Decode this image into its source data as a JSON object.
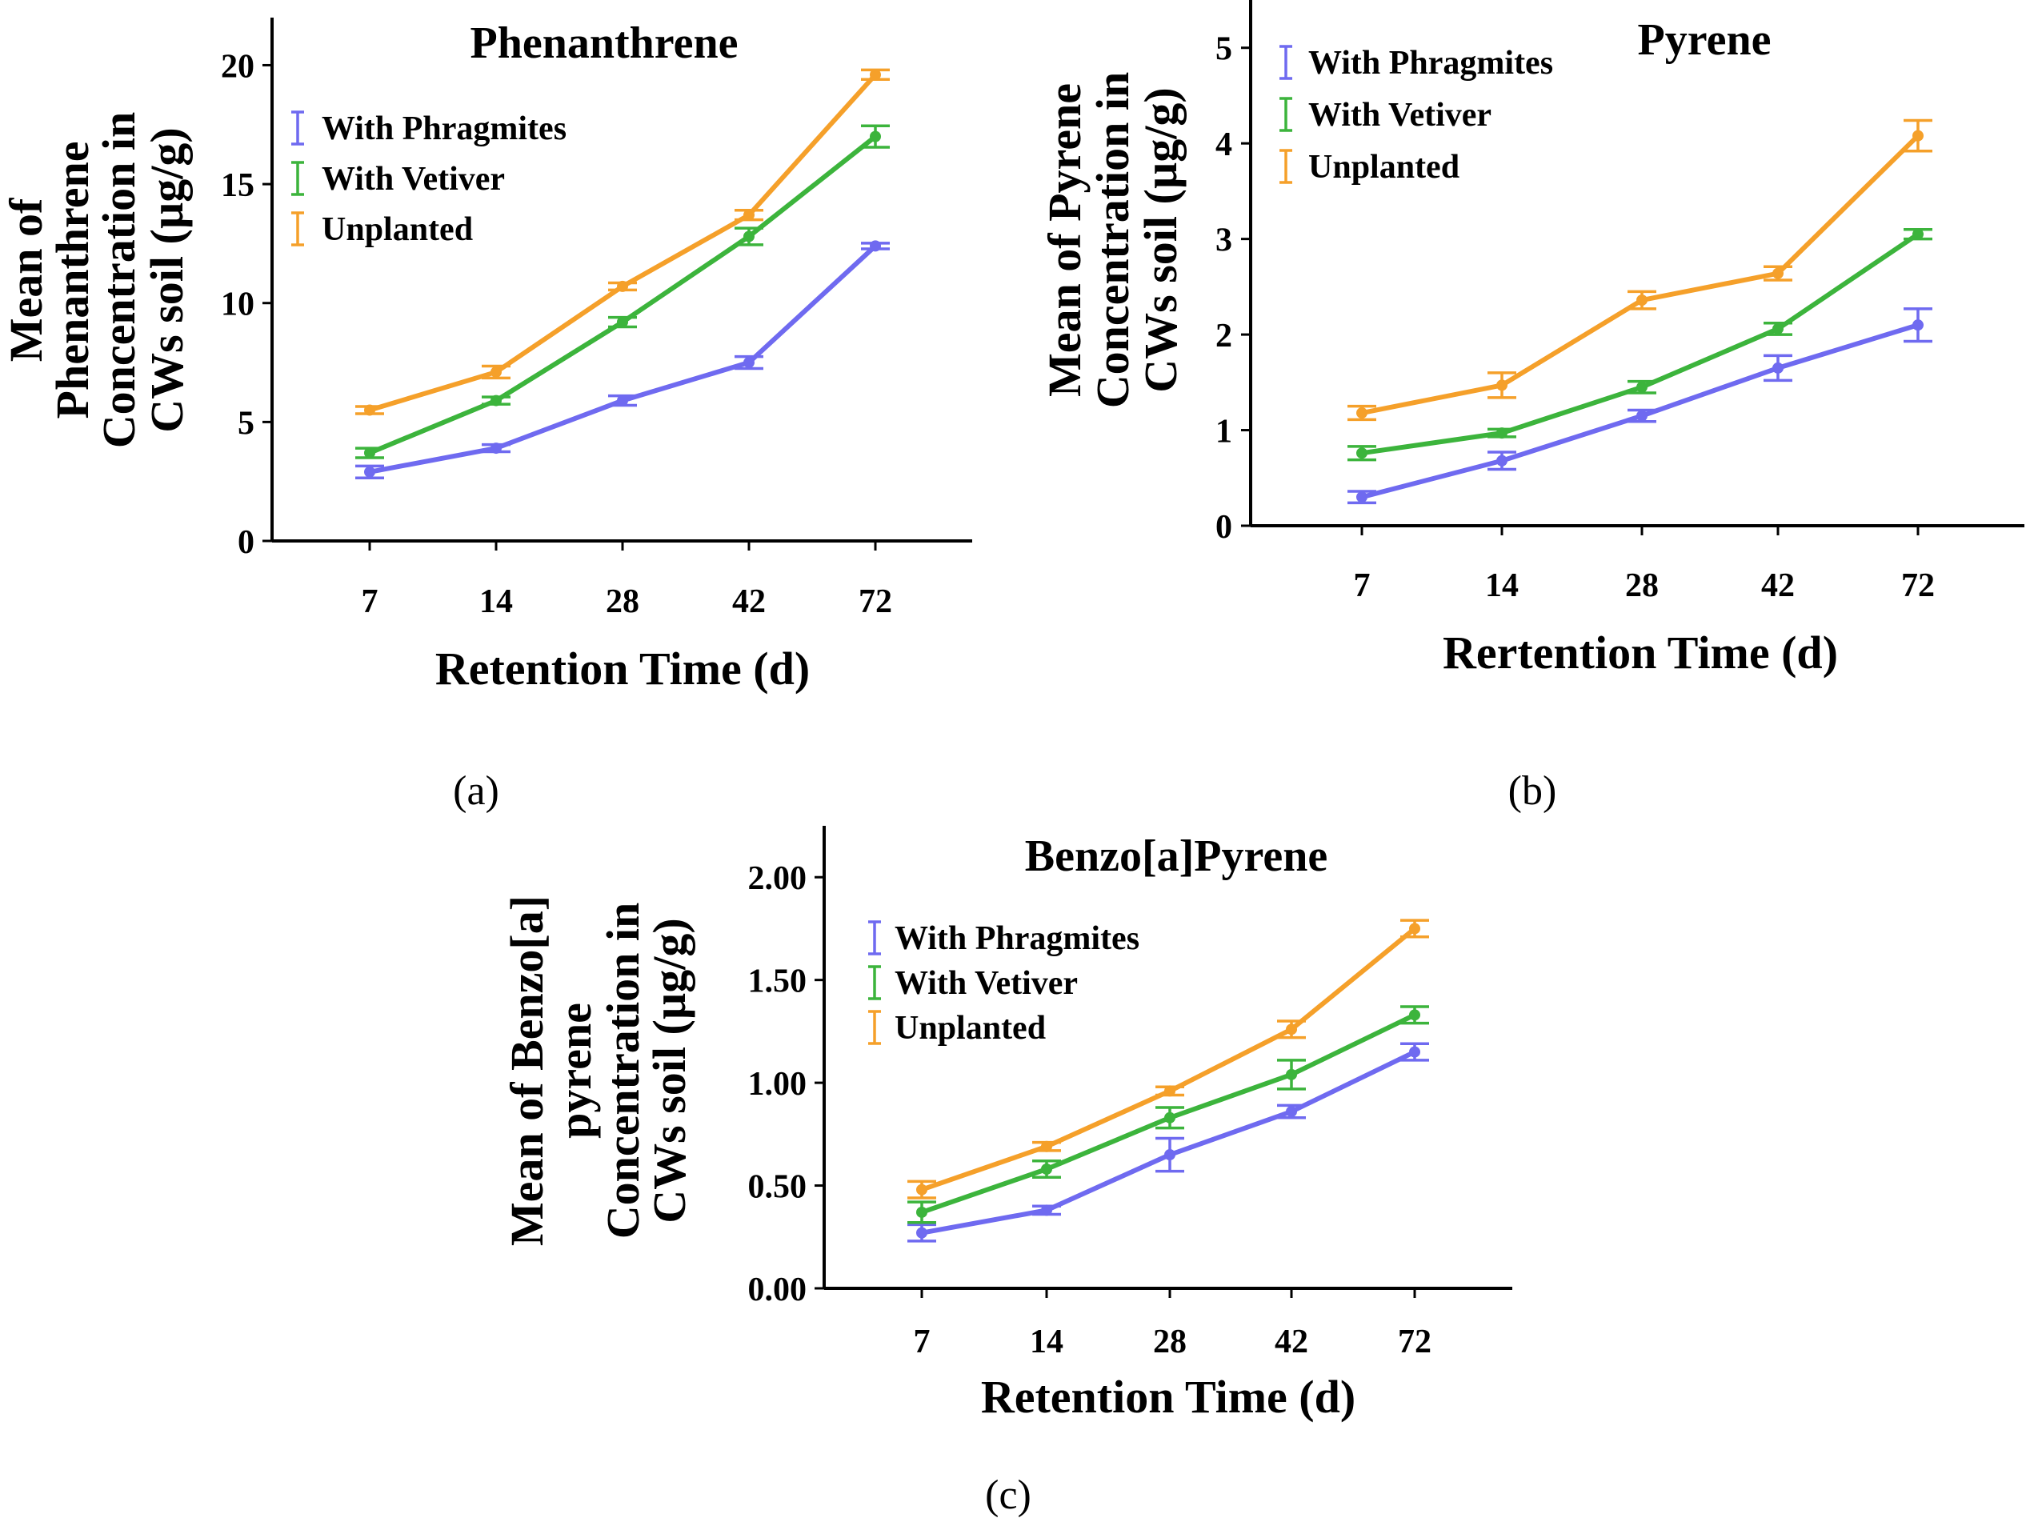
{
  "chart_data": [
    {
      "type": "line",
      "panel": "(a)",
      "title": "Phenanthrene",
      "xlabel": "Retention Time (d)",
      "ylabel_lines": [
        "Mean of",
        "Phenanthrene",
        "Concentration in",
        "CWs soil (µg/g)"
      ],
      "categories": [
        "7",
        "14",
        "28",
        "42",
        "72"
      ],
      "ylim": [
        0,
        22
      ],
      "yticks": [
        0,
        5,
        10,
        15,
        20
      ],
      "ytick_labels": [
        "0",
        "5",
        "10",
        "15",
        "20"
      ],
      "legend_position": "top-left",
      "series": [
        {
          "name": "With Phragmites",
          "color": "#6F6AF0",
          "values": [
            2.9,
            3.9,
            5.9,
            7.5,
            12.4
          ],
          "errors": [
            0.25,
            0.15,
            0.2,
            0.25,
            0.12
          ]
        },
        {
          "name": "With Vetiver",
          "color": "#3CB43C",
          "values": [
            3.7,
            5.9,
            9.2,
            12.8,
            17.0
          ],
          "errors": [
            0.2,
            0.15,
            0.2,
            0.35,
            0.45
          ]
        },
        {
          "name": "Unplanted",
          "color": "#F5A02A",
          "values": [
            5.5,
            7.1,
            10.7,
            13.7,
            19.6
          ],
          "errors": [
            0.15,
            0.25,
            0.15,
            0.2,
            0.2
          ]
        }
      ]
    },
    {
      "type": "line",
      "panel": "(b)",
      "title": "Pyrene",
      "xlabel": "Rertention Time (d)",
      "ylabel_lines": [
        "Mean of Pyrene",
        "Concentration in",
        "CWs soil (µg/g)"
      ],
      "categories": [
        "7",
        "14",
        "28",
        "42",
        "72"
      ],
      "ylim": [
        0,
        5.5
      ],
      "yticks": [
        0,
        1,
        2,
        3,
        4,
        5
      ],
      "ytick_labels": [
        "0",
        "1",
        "2",
        "3",
        "4",
        "5"
      ],
      "legend_position": "top-left",
      "series": [
        {
          "name": "With Phragmites",
          "color": "#6F6AF0",
          "values": [
            0.3,
            0.68,
            1.15,
            1.65,
            2.1
          ],
          "errors": [
            0.06,
            0.09,
            0.06,
            0.13,
            0.17
          ]
        },
        {
          "name": "With Vetiver",
          "color": "#3CB43C",
          "values": [
            0.76,
            0.97,
            1.45,
            2.06,
            3.05
          ],
          "errors": [
            0.07,
            0.04,
            0.06,
            0.06,
            0.05
          ]
        },
        {
          "name": "Unplanted",
          "color": "#F5A02A",
          "values": [
            1.18,
            1.47,
            2.36,
            2.64,
            4.08
          ],
          "errors": [
            0.07,
            0.13,
            0.09,
            0.07,
            0.16
          ]
        }
      ]
    },
    {
      "type": "line",
      "panel": "(c)",
      "title": "Benzo[a]Pyrene",
      "xlabel": "Retention Time (d)",
      "ylabel_lines": [
        "Mean of Benzo[a]",
        "pyrene",
        "Concentration in",
        "CWs soil (µg/g)"
      ],
      "categories": [
        "7",
        "14",
        "28",
        "42",
        "72"
      ],
      "ylim": [
        0,
        2.25
      ],
      "yticks": [
        0,
        0.5,
        1.0,
        1.5,
        2.0
      ],
      "ytick_labels": [
        "0.00",
        "0.50",
        "1.00",
        "1.50",
        "2.00"
      ],
      "legend_position": "top-left",
      "series": [
        {
          "name": "With Phragmites",
          "color": "#6F6AF0",
          "values": [
            0.27,
            0.38,
            0.65,
            0.86,
            1.15
          ],
          "errors": [
            0.04,
            0.02,
            0.08,
            0.03,
            0.04
          ]
        },
        {
          "name": "With Vetiver",
          "color": "#3CB43C",
          "values": [
            0.37,
            0.58,
            0.83,
            1.04,
            1.33
          ],
          "errors": [
            0.05,
            0.04,
            0.05,
            0.07,
            0.04
          ]
        },
        {
          "name": "Unplanted",
          "color": "#F5A02A",
          "values": [
            0.48,
            0.69,
            0.96,
            1.26,
            1.75
          ],
          "errors": [
            0.04,
            0.02,
            0.02,
            0.04,
            0.04
          ]
        }
      ]
    }
  ]
}
